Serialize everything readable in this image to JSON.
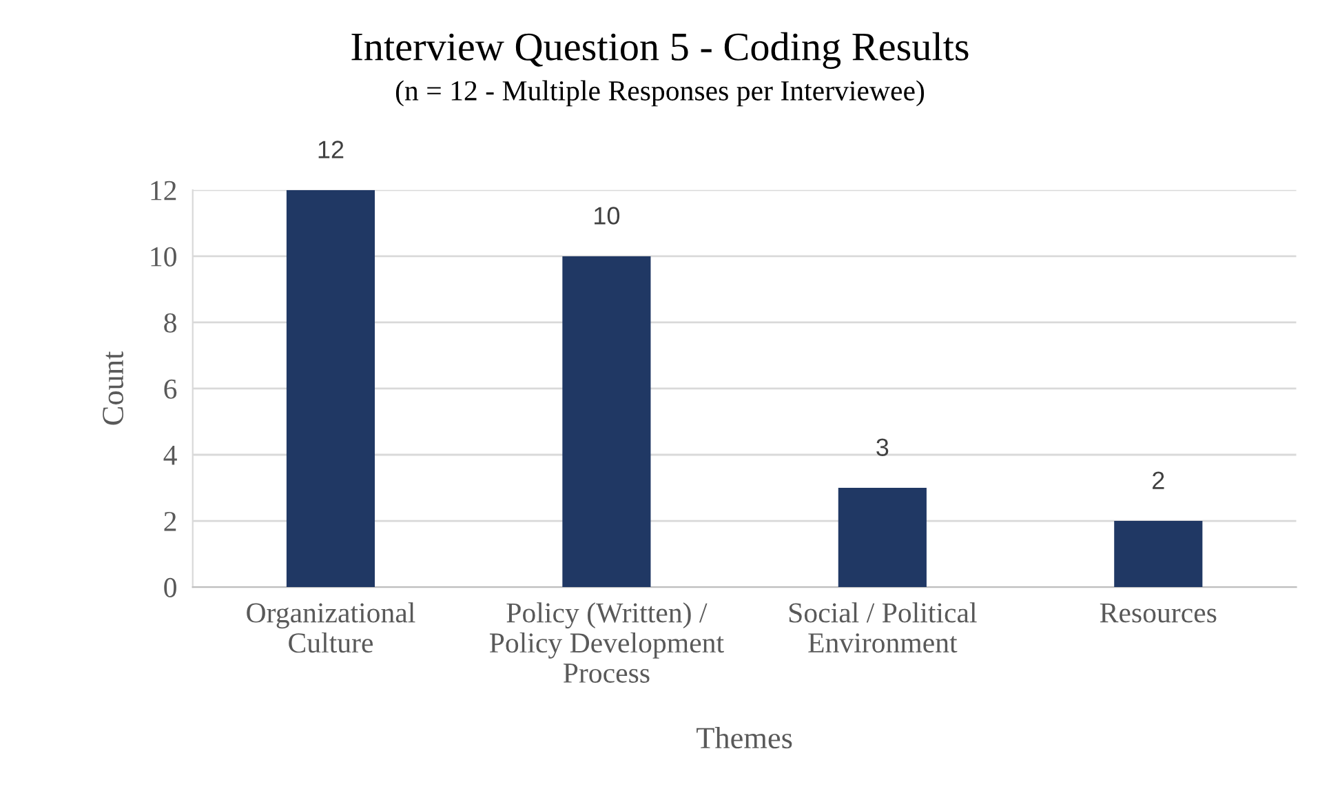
{
  "chart_data": {
    "type": "bar",
    "title": "Interview Question 5 - Coding Results",
    "subtitle": "(n = 12 - Multiple Responses per Interviewee)",
    "xlabel": "Themes",
    "ylabel": "Count",
    "categories": [
      "Organizational\nCulture",
      "Policy (Written) /\nPolicy Development\nProcess",
      "Social / Political\nEnvironment",
      "Resources"
    ],
    "values": [
      12,
      10,
      3,
      2
    ],
    "color": "#203864",
    "ylim": [
      0,
      12
    ],
    "yticks": [
      0,
      2,
      4,
      6,
      8,
      10,
      12
    ],
    "grid": "y",
    "data_labels": true
  }
}
